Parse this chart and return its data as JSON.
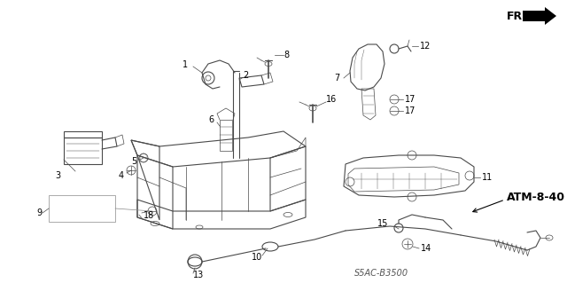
{
  "background_color": "#ffffff",
  "figsize": [
    6.4,
    3.19
  ],
  "dpi": 100,
  "line_color": "#4a4a4a",
  "label_fontsize": 7,
  "label_color": "#000000",
  "fr_text": "FR.",
  "atm_text": "ATM-8-40",
  "ref_text": "S5AC-B3500"
}
